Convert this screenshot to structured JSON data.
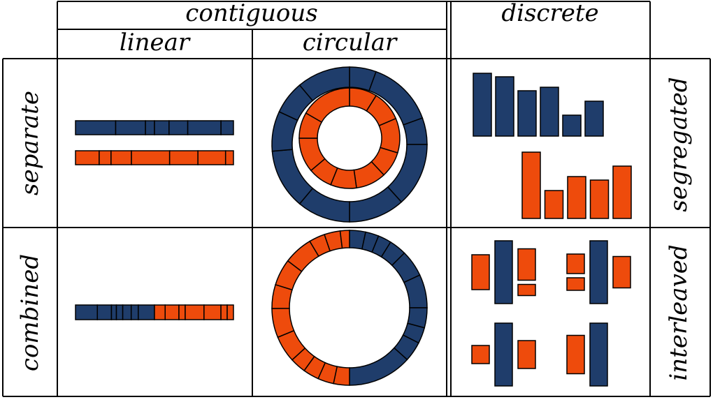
{
  "colors": {
    "blue": "#1f3d6b",
    "orange": "#ee4b0c",
    "stroke": "#000000"
  },
  "header": {
    "contiguous": "contiguous",
    "linear": "linear",
    "circular": "circular",
    "discrete": "discrete"
  },
  "rows": {
    "separate": "separate",
    "combined": "combined"
  },
  "right": {
    "segregated": "segregated",
    "interleaved": "interleaved"
  },
  "linear_separate": {
    "blue_segments": [
      58,
      43,
      13,
      21,
      27,
      48,
      18
    ],
    "orange_segments": [
      36,
      18,
      31,
      58,
      43,
      42,
      12
    ]
  },
  "linear_combined": {
    "blue_segments": [
      31,
      20,
      7,
      9,
      12,
      10,
      23
    ],
    "orange_segments": [
      17,
      22,
      10,
      30,
      27,
      10,
      10
    ]
  },
  "ring_separate": {
    "blue_segments": [
      20,
      50,
      20,
      48,
      42,
      40,
      45,
      30,
      25,
      40
    ],
    "orange_segments": [
      32,
      35,
      40,
      30,
      35,
      30,
      28,
      40,
      30,
      60
    ]
  },
  "ring_combined": {
    "blue_segments": [
      12,
      10,
      10,
      13,
      20,
      25,
      15,
      12,
      15,
      48
    ],
    "orange_segments": [
      12,
      12,
      12,
      12,
      20,
      22,
      18,
      20,
      22,
      12,
      12,
      7
    ]
  },
  "bars_segregated": {
    "blue_values": [
      90,
      85,
      65,
      70,
      30,
      50
    ],
    "orange_values": [
      95,
      40,
      60,
      55,
      75
    ]
  },
  "bars_interleaved": {
    "groups": [
      {
        "left": {
          "value": 50,
          "color": "orange"
        },
        "center": {
          "value": 90,
          "color": "blue"
        },
        "right": [
          {
            "value": 45,
            "color": "orange"
          },
          {
            "value": 16,
            "color": "orange"
          }
        ]
      },
      {
        "left": [
          {
            "value": 28,
            "color": "orange"
          },
          {
            "value": 18,
            "color": "orange"
          }
        ],
        "center": {
          "value": 90,
          "color": "blue"
        },
        "right": {
          "value": 45,
          "color": "orange"
        }
      },
      {
        "left": {
          "value": 26,
          "color": "orange"
        },
        "center": {
          "value": 90,
          "color": "blue"
        },
        "right": {
          "value": 40,
          "color": "orange"
        }
      },
      {
        "left": {
          "value": 55,
          "color": "orange"
        },
        "center": {
          "value": 90,
          "color": "blue"
        },
        "right": null
      }
    ]
  }
}
